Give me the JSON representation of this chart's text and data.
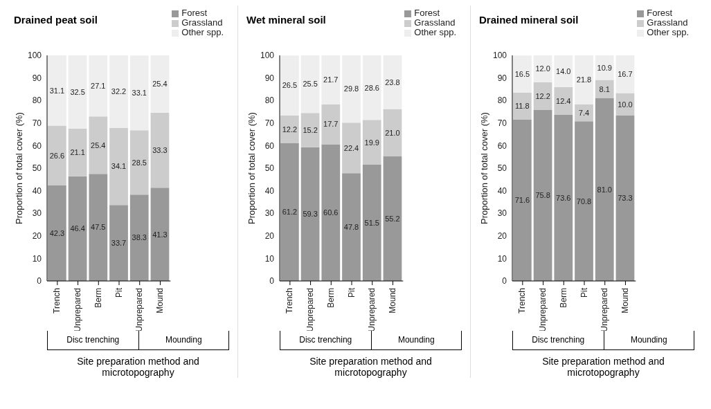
{
  "chart_data": [
    {
      "type": "bar",
      "title": "Drained peat soil",
      "xlabel": "Site preparation method and microtopography",
      "ylabel": "Proportion of total cover (%)",
      "stacked": true,
      "categories": [
        "Trench",
        "Unprepared",
        "Berm",
        "Pit",
        "Unprepared",
        "Mound"
      ],
      "series": [
        {
          "name": "Forest",
          "color": "#999999",
          "values": [
            42.3,
            46.4,
            47.5,
            33.7,
            38.3,
            41.3
          ],
          "value_labels": [
            "42.3",
            "46.4",
            "47.5",
            "33.7",
            "38.3",
            "41.3"
          ]
        },
        {
          "name": "Grassland",
          "color": "#cccccc",
          "values": [
            26.6,
            21.1,
            25.4,
            34.1,
            28.5,
            33.3
          ],
          "value_labels": [
            "26.6",
            "21.1",
            "25.4",
            "34.1",
            "28.5",
            "33.3"
          ]
        },
        {
          "name": "Other spp.",
          "color": "#eeeeee",
          "values": [
            31.1,
            32.5,
            27.1,
            32.2,
            33.1,
            25.4
          ],
          "value_labels": [
            "31.1",
            "32.5",
            "27.1",
            "32.2",
            "33.1",
            "25.4"
          ]
        }
      ],
      "ylim": [
        0,
        100
      ],
      "yticks": [
        0,
        10,
        20,
        30,
        40,
        50,
        60,
        70,
        80,
        90,
        100
      ],
      "grid": false,
      "legend": "top right",
      "annotations": [
        "Disc trenching",
        "Mounding"
      ]
    },
    {
      "type": "bar",
      "title": "Wet mineral soil",
      "xlabel": "Site preparation method and microtopography",
      "ylabel": "Proportion of total cover (%)",
      "stacked": true,
      "categories": [
        "Trench",
        "Unprepared",
        "Berm",
        "Pit",
        "Unprepared",
        "Mound"
      ],
      "series": [
        {
          "name": "Forest",
          "color": "#999999",
          "values": [
            61.2,
            59.3,
            60.6,
            47.8,
            51.5,
            55.2
          ],
          "value_labels": [
            "61.2",
            "59.3",
            "60.6",
            "47.8",
            "51.5",
            "55.2"
          ]
        },
        {
          "name": "Grassland",
          "color": "#cccccc",
          "values": [
            12.2,
            15.2,
            17.7,
            22.4,
            19.9,
            21.0
          ],
          "value_labels": [
            "12.2",
            "15.2",
            "17.7",
            "22.4",
            "19.9",
            "21.0"
          ]
        },
        {
          "name": "Other spp.",
          "color": "#eeeeee",
          "values": [
            26.5,
            25.5,
            21.7,
            29.8,
            28.6,
            23.8
          ],
          "value_labels": [
            "26.5",
            "25.5",
            "21.7",
            "29.8",
            "28.6",
            "23.8"
          ]
        }
      ],
      "ylim": [
        0,
        100
      ],
      "yticks": [
        0,
        10,
        20,
        30,
        40,
        50,
        60,
        70,
        80,
        90,
        100
      ],
      "grid": false,
      "legend": "top right",
      "annotations": [
        "Disc trenching",
        "Mounding"
      ]
    },
    {
      "type": "bar",
      "title": "Drained mineral soil",
      "xlabel": "Site preparation method and microtopography",
      "ylabel": "Proportion of total cover (%)",
      "stacked": true,
      "categories": [
        "Trench",
        "Unprepared",
        "Berm",
        "Pit",
        "Unprepared",
        "Mound"
      ],
      "series": [
        {
          "name": "Forest",
          "color": "#999999",
          "values": [
            71.6,
            75.8,
            73.6,
            70.8,
            81.0,
            73.3
          ],
          "value_labels": [
            "71.6",
            "75.8",
            "73.6",
            "70.8",
            "81.0",
            "73.3"
          ]
        },
        {
          "name": "Grassland",
          "color": "#cccccc",
          "values": [
            11.8,
            12.2,
            12.4,
            7.4,
            8.1,
            10.0
          ],
          "value_labels": [
            "11.8",
            "12.2",
            "12.4",
            "7.4",
            "8.1",
            "10.0"
          ]
        },
        {
          "name": "Other spp.",
          "color": "#eeeeee",
          "values": [
            16.5,
            12.0,
            14.0,
            21.8,
            10.9,
            16.7
          ],
          "value_labels": [
            "16.5",
            "12.0",
            "14.0",
            "21.8",
            "10.9",
            "16.7"
          ]
        }
      ],
      "ylim": [
        0,
        100
      ],
      "yticks": [
        0,
        10,
        20,
        30,
        40,
        50,
        60,
        70,
        80,
        90,
        100
      ],
      "grid": false,
      "legend": "top right",
      "annotations": [
        "Disc trenching",
        "Mounding"
      ]
    }
  ]
}
